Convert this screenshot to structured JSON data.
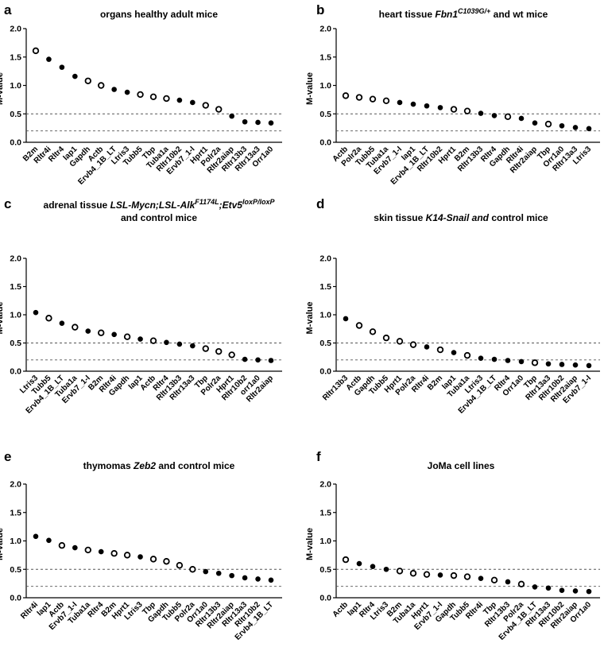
{
  "chart_data": [
    {
      "panel": "a",
      "type": "scatter",
      "title": "organs healthy adult mice",
      "title_parts": [
        {
          "text": "organs healthy adult mice",
          "italic": false
        }
      ],
      "title_line2": [],
      "ylabel": "M-value",
      "ylim": [
        0,
        2.0
      ],
      "yticks": [
        "0.0",
        "0.5",
        "1.0",
        "1.5",
        "2.0"
      ],
      "reference_lines": [
        0.5,
        0.2
      ],
      "categories": [
        "B2m",
        "Rltr4i",
        "Rltr4",
        "Iap1",
        "Gapdh",
        "Actb",
        "Ervb4_1B_LT",
        "Ltris3",
        "Tubb5",
        "Tbp",
        "Tuba1a",
        "Rltr10b2",
        "Ervb7_1-I",
        "Hprt1",
        "Polr2a",
        "Rltr2aiap",
        "Rltr13b3",
        "Rltr13a3",
        "Orr1a0"
      ],
      "values": [
        1.61,
        1.46,
        1.32,
        1.16,
        1.08,
        1.0,
        0.93,
        0.88,
        0.84,
        0.8,
        0.77,
        0.74,
        0.7,
        0.65,
        0.58,
        0.46,
        0.36,
        0.35,
        0.34
      ],
      "markers": [
        "open",
        "filled",
        "filled",
        "filled",
        "open",
        "open",
        "filled",
        "filled",
        "open",
        "open",
        "open",
        "filled",
        "filled",
        "open",
        "open",
        "filled",
        "filled",
        "filled",
        "filled"
      ]
    },
    {
      "panel": "b",
      "type": "scatter",
      "title": "heart tissue Fbn1 C1039G/+ and wt mice",
      "title_parts": [
        {
          "text": "heart tissue ",
          "italic": false
        },
        {
          "text": "Fbn1",
          "italic": true
        },
        {
          "text": "C1039G/+",
          "italic": true,
          "sup": true
        },
        {
          "text": " and wt mice",
          "italic": false
        }
      ],
      "title_line2": [],
      "ylabel": "M-value",
      "ylim": [
        0,
        2.0
      ],
      "yticks": [
        "0.0",
        "0.5",
        "1.0",
        "1.5",
        "2.0"
      ],
      "reference_lines": [
        0.5,
        0.2
      ],
      "categories": [
        "Actb",
        "Polr2a",
        "Tubb5",
        "Tuba1a",
        "Ervb7_1-I",
        "Iap1",
        "Ervb4_1B_LT",
        "Rltr10b2",
        "Hprt1",
        "B2m",
        "Rltr13b3",
        "Rltr4",
        "Gapdh",
        "Rltr4i",
        "Rltr2aiap",
        "Tbp",
        "Orr1a0",
        "Rltr13a3",
        "Ltris3"
      ],
      "values": [
        0.82,
        0.79,
        0.76,
        0.73,
        0.7,
        0.67,
        0.64,
        0.61,
        0.58,
        0.55,
        0.51,
        0.47,
        0.45,
        0.42,
        0.34,
        0.32,
        0.29,
        0.26,
        0.24
      ],
      "markers": [
        "open",
        "open",
        "open",
        "open",
        "filled",
        "filled",
        "filled",
        "filled",
        "open",
        "open",
        "filled",
        "filled",
        "open",
        "filled",
        "filled",
        "open",
        "filled",
        "filled",
        "filled"
      ]
    },
    {
      "panel": "c",
      "type": "scatter",
      "title": "adrenal tissue LSL-Mycn;LSL-Alk F1174L;Etv5 loxP/loxP and control mice",
      "title_parts": [
        {
          "text": "adrenal tissue ",
          "italic": false
        },
        {
          "text": "LSL-Mycn;LSL-Alk",
          "italic": true
        },
        {
          "text": "F1174L",
          "italic": true,
          "sup": true
        },
        {
          "text": ";Etv5",
          "italic": true
        },
        {
          "text": "loxP/loxP",
          "italic": true,
          "sup": true
        }
      ],
      "title_line2": [
        {
          "text": "and control mice",
          "italic": false
        }
      ],
      "ylabel": "M-value",
      "ylim": [
        0,
        2.0
      ],
      "yticks": [
        "0.0",
        "0.5",
        "1.0",
        "1.5",
        "2.0"
      ],
      "reference_lines": [
        0.5,
        0.2
      ],
      "categories": [
        "Ltris3",
        "Tubb5",
        "Ervb4_1B_LT",
        "Tuba1a",
        "Ervb7_1-I",
        "B2m",
        "Rltr4i",
        "Gapdh",
        "Iap1",
        "Actb",
        "Rltr4",
        "Rltr13b3",
        "Rltr13a3",
        "Tbp",
        "Polr2a",
        "Hprt1",
        "Rltr10b2",
        "orr1a0",
        "Rltr2aiap"
      ],
      "values": [
        1.04,
        0.94,
        0.85,
        0.78,
        0.71,
        0.68,
        0.65,
        0.61,
        0.57,
        0.54,
        0.51,
        0.48,
        0.45,
        0.4,
        0.35,
        0.29,
        0.21,
        0.2,
        0.19
      ],
      "markers": [
        "filled",
        "open",
        "filled",
        "open",
        "filled",
        "open",
        "filled",
        "open",
        "filled",
        "open",
        "filled",
        "filled",
        "filled",
        "open",
        "open",
        "open",
        "filled",
        "filled",
        "filled"
      ]
    },
    {
      "panel": "d",
      "type": "scatter",
      "title": "skin tissue K14-Snail and control mice",
      "title_parts": [
        {
          "text": "skin tissue ",
          "italic": false
        },
        {
          "text": "K14-Snail and",
          "italic": true
        },
        {
          "text": " control mice",
          "italic": false
        }
      ],
      "title_line2": [],
      "ylabel": "M-value",
      "ylim": [
        0,
        2.0
      ],
      "yticks": [
        "0.0",
        "0.5",
        "1.0",
        "1.5",
        "2.0"
      ],
      "reference_lines": [
        0.5,
        0.2
      ],
      "categories": [
        "Rltr13b3",
        "Actb",
        "Gapdh",
        "Tubb5",
        "Hprt1",
        "Polr2a",
        "Rltr4i",
        "B2m",
        "Iap1",
        "Tuba1a",
        "Ltris3",
        "Ervb4_1B_LT",
        "Rltr4",
        "Orr1a0",
        "Tbp",
        "Rltr13a3",
        "Rltr10b2",
        "Rltr2aiap",
        "Ervb7_1-I"
      ],
      "values": [
        0.93,
        0.81,
        0.7,
        0.59,
        0.53,
        0.47,
        0.43,
        0.38,
        0.33,
        0.28,
        0.23,
        0.21,
        0.19,
        0.17,
        0.15,
        0.13,
        0.12,
        0.11,
        0.1
      ],
      "markers": [
        "filled",
        "open",
        "open",
        "open",
        "open",
        "open",
        "filled",
        "open",
        "filled",
        "open",
        "filled",
        "filled",
        "filled",
        "filled",
        "open",
        "filled",
        "filled",
        "filled",
        "filled"
      ]
    },
    {
      "panel": "e",
      "type": "scatter",
      "title": "thymomas Zeb2 and control mice",
      "title_parts": [
        {
          "text": "thymomas ",
          "italic": false
        },
        {
          "text": "Zeb2",
          "italic": true
        },
        {
          "text": " and control mice",
          "italic": false
        }
      ],
      "title_line2": [],
      "ylabel": "M-value",
      "ylim": [
        0,
        2.0
      ],
      "yticks": [
        "0.0",
        "0.5",
        "1.0",
        "1.5",
        "2.0"
      ],
      "reference_lines": [
        0.5,
        0.2
      ],
      "categories": [
        "Rltr4i",
        "Iap1",
        "Actb",
        "Ervb7_1-I",
        "Tuba1a",
        "Rltr4",
        "B2m",
        "Hprt1",
        "Ltris3",
        "Tbp",
        "Gapdh",
        "Tubb5",
        "Polr2a",
        "Orr1a0",
        "Rltr13b3",
        "Rltr2aiap",
        "Rltr13a3",
        "Rltr10b2",
        "Ervb4_1B_LT"
      ],
      "values": [
        1.08,
        1.01,
        0.92,
        0.88,
        0.84,
        0.81,
        0.78,
        0.75,
        0.72,
        0.68,
        0.64,
        0.57,
        0.5,
        0.46,
        0.43,
        0.39,
        0.35,
        0.33,
        0.31
      ],
      "markers": [
        "filled",
        "filled",
        "open",
        "filled",
        "open",
        "filled",
        "open",
        "open",
        "filled",
        "open",
        "open",
        "open",
        "open",
        "filled",
        "filled",
        "filled",
        "filled",
        "filled",
        "filled"
      ]
    },
    {
      "panel": "f",
      "type": "scatter",
      "title": "JoMa cell lines",
      "title_parts": [
        {
          "text": "JoMa cell lines",
          "italic": false
        }
      ],
      "title_line2": [],
      "ylabel": "M-value",
      "ylim": [
        0,
        2.0
      ],
      "yticks": [
        "0.0",
        "0.5",
        "1.0",
        "1.5",
        "2.0"
      ],
      "reference_lines": [
        0.5,
        0.2
      ],
      "categories": [
        "Actb",
        "Iap1",
        "Rltr4",
        "Ltris3",
        "B2m",
        "Tuba1a",
        "Hprt1",
        "Ervb7_1-I",
        "Gapdh",
        "Tubb5",
        "Rltr4i",
        "Tbp",
        "Rltr13b3",
        "Polr2a",
        "Ervb4_1B_LT",
        "Rltr13a3",
        "Rltr10b2",
        "Rltr2aiap",
        "Orr1a0"
      ],
      "values": [
        0.67,
        0.6,
        0.55,
        0.5,
        0.47,
        0.43,
        0.41,
        0.4,
        0.39,
        0.37,
        0.34,
        0.31,
        0.28,
        0.24,
        0.19,
        0.17,
        0.13,
        0.12,
        0.11
      ],
      "markers": [
        "open",
        "filled",
        "filled",
        "filled",
        "open",
        "open",
        "open",
        "filled",
        "open",
        "open",
        "filled",
        "open",
        "filled",
        "open",
        "filled",
        "filled",
        "filled",
        "filled",
        "filled"
      ]
    }
  ]
}
